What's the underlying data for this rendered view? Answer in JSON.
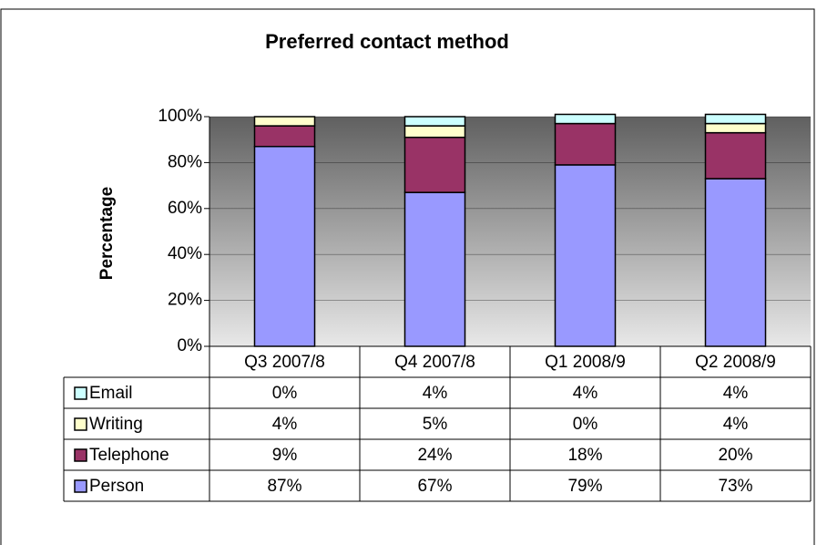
{
  "chart_data": {
    "type": "stacked_bar",
    "title": "Preferred contact method",
    "y_label": "Percentage",
    "categories": [
      "Q3 2007/8",
      "Q4 2007/8",
      "Q1 2008/9",
      "Q2 2008/9"
    ],
    "series": [
      {
        "name": "Person",
        "color": "#9999ff",
        "values": [
          87,
          67,
          79,
          73
        ],
        "value_labels": [
          "87%",
          "67%",
          "79%",
          "73%"
        ]
      },
      {
        "name": "Telephone",
        "color": "#993366",
        "values": [
          9,
          24,
          18,
          20
        ],
        "value_labels": [
          "9%",
          "24%",
          "18%",
          "20%"
        ]
      },
      {
        "name": "Writing",
        "color": "#ffffcc",
        "values": [
          4,
          5,
          0,
          4
        ],
        "value_labels": [
          "4%",
          "5%",
          "0%",
          "4%"
        ]
      },
      {
        "name": "Email",
        "color": "#ccffff",
        "values": [
          0,
          4,
          4,
          4
        ],
        "value_labels": [
          "0%",
          "4%",
          "4%",
          "4%"
        ]
      }
    ],
    "ylim": [
      0,
      100
    ],
    "yticks": [
      {
        "value": 0,
        "label": "0%"
      },
      {
        "value": 20,
        "label": "20%"
      },
      {
        "value": 40,
        "label": "40%"
      },
      {
        "value": 60,
        "label": "60%"
      },
      {
        "value": 80,
        "label": "80%"
      },
      {
        "value": 100,
        "label": "100%"
      }
    ],
    "grid": true
  }
}
